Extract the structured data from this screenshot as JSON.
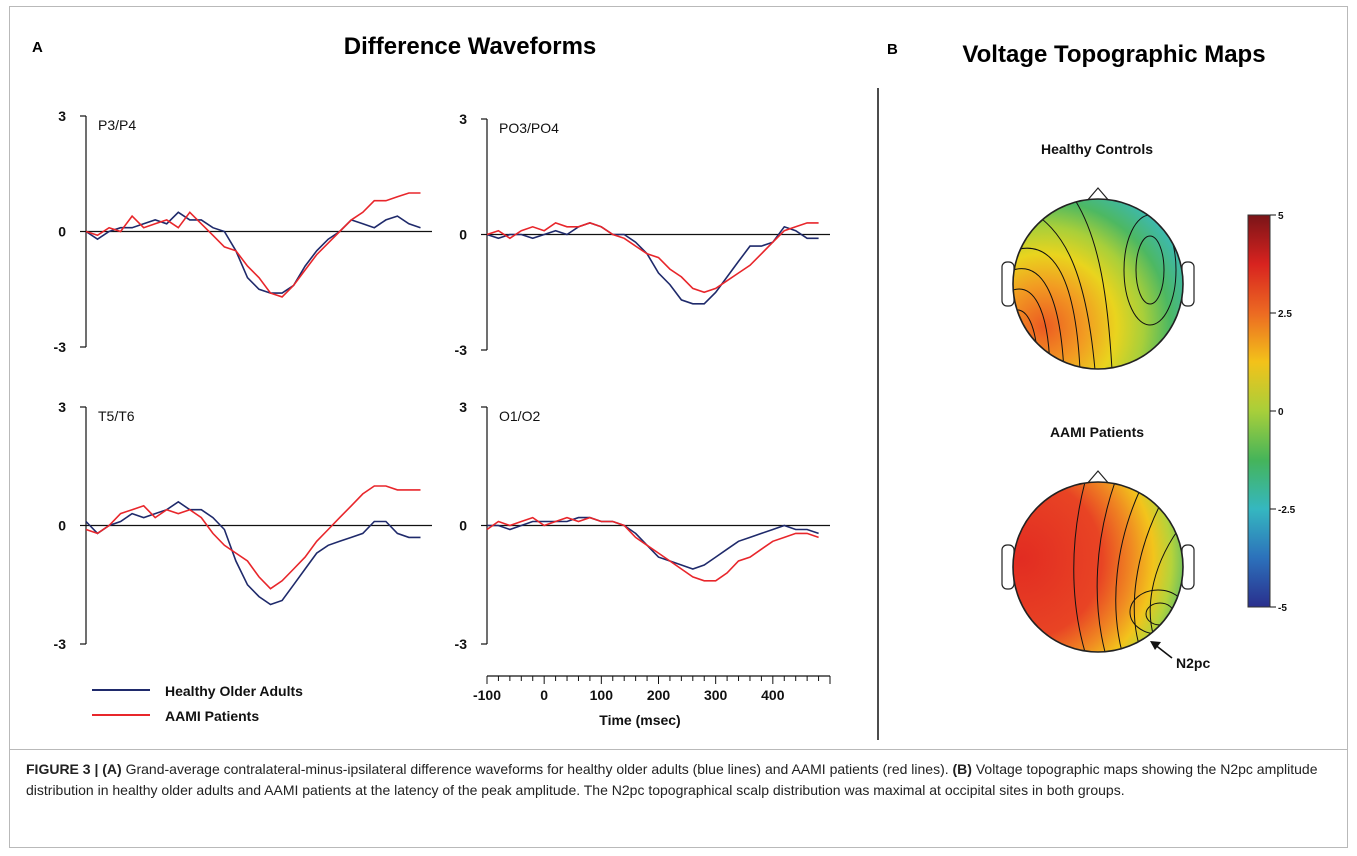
{
  "panel_a": {
    "letter": "A",
    "title": "Difference Waveforms",
    "legend": [
      {
        "label": "Healthy Older Adults",
        "color": "#1f2a6b"
      },
      {
        "label": "AAMI Patients",
        "color": "#e8262b"
      }
    ],
    "x_tick_labels": [
      "-100",
      "0",
      "100",
      "200",
      "300",
      "400"
    ],
    "x_axis_label": "Time  (msec)"
  },
  "panel_b": {
    "letter": "B",
    "title": "Voltage  Topographic Maps",
    "maps": [
      {
        "title": "Healthy Controls"
      },
      {
        "title": "AAMI Patients",
        "annotation": "N2pc"
      }
    ],
    "color_scale": {
      "tick_labels": [
        "5",
        "2.5",
        "0",
        "-2.5",
        "-5"
      ],
      "colors": [
        "#7a1418",
        "#d8231f",
        "#ec6a22",
        "#f3c21a",
        "#a8cf3a",
        "#45b45a",
        "#35b7c0",
        "#2c71bb",
        "#2a2f8d"
      ]
    }
  },
  "chart_data": [
    {
      "type": "line",
      "label": "P3/P4",
      "xlim": [
        -100,
        500
      ],
      "ylim": [
        -3,
        3
      ],
      "y_tick_labels": [
        "3",
        "0",
        "-3"
      ],
      "series": [
        {
          "name": "Healthy Older Adults",
          "color": "#1f2a6b",
          "x": [
            -100,
            -80,
            -60,
            -40,
            -20,
            0,
            20,
            40,
            60,
            80,
            100,
            120,
            140,
            160,
            180,
            200,
            220,
            240,
            260,
            280,
            300,
            320,
            340,
            360,
            380,
            400,
            420,
            440,
            460,
            480
          ],
          "y": [
            0.0,
            -0.2,
            0.0,
            0.1,
            0.1,
            0.2,
            0.3,
            0.2,
            0.5,
            0.3,
            0.3,
            0.1,
            0.0,
            -0.5,
            -1.2,
            -1.5,
            -1.6,
            -1.6,
            -1.4,
            -0.9,
            -0.5,
            -0.2,
            0.0,
            0.3,
            0.2,
            0.1,
            0.3,
            0.4,
            0.2,
            0.1
          ]
        },
        {
          "name": "AAMI Patients",
          "color": "#e8262b",
          "x": [
            -100,
            -80,
            -60,
            -40,
            -20,
            0,
            20,
            40,
            60,
            80,
            100,
            120,
            140,
            160,
            180,
            200,
            220,
            240,
            260,
            280,
            300,
            320,
            340,
            360,
            380,
            400,
            420,
            440,
            460,
            480
          ],
          "y": [
            0.0,
            -0.1,
            0.1,
            0.0,
            0.4,
            0.1,
            0.2,
            0.3,
            0.1,
            0.5,
            0.2,
            -0.1,
            -0.4,
            -0.5,
            -0.9,
            -1.2,
            -1.6,
            -1.7,
            -1.4,
            -1.0,
            -0.6,
            -0.3,
            0.0,
            0.3,
            0.5,
            0.8,
            0.8,
            0.9,
            1.0,
            1.0
          ]
        }
      ]
    },
    {
      "type": "line",
      "label": "PO3/PO4",
      "xlim": [
        -100,
        500
      ],
      "ylim": [
        -3,
        3
      ],
      "y_tick_labels": [
        "3",
        "0",
        "-3"
      ],
      "series": [
        {
          "name": "Healthy Older Adults",
          "color": "#1f2a6b",
          "x": [
            -100,
            -80,
            -60,
            -40,
            -20,
            0,
            20,
            40,
            60,
            80,
            100,
            120,
            140,
            160,
            180,
            200,
            220,
            240,
            260,
            280,
            300,
            320,
            340,
            360,
            380,
            400,
            420,
            440,
            460,
            480
          ],
          "y": [
            0.0,
            -0.1,
            0.0,
            0.0,
            -0.1,
            0.0,
            0.1,
            0.0,
            0.2,
            0.3,
            0.2,
            0.0,
            0.0,
            -0.2,
            -0.5,
            -1.0,
            -1.3,
            -1.7,
            -1.8,
            -1.8,
            -1.5,
            -1.1,
            -0.7,
            -0.3,
            -0.3,
            -0.2,
            0.2,
            0.1,
            -0.1,
            -0.1
          ]
        },
        {
          "name": "AAMI Patients",
          "color": "#e8262b",
          "x": [
            -100,
            -80,
            -60,
            -40,
            -20,
            0,
            20,
            40,
            60,
            80,
            100,
            120,
            140,
            160,
            180,
            200,
            220,
            240,
            260,
            280,
            300,
            320,
            340,
            360,
            380,
            400,
            420,
            440,
            460,
            480
          ],
          "y": [
            0.0,
            0.1,
            -0.1,
            0.1,
            0.2,
            0.1,
            0.3,
            0.2,
            0.2,
            0.3,
            0.2,
            0.0,
            -0.1,
            -0.3,
            -0.5,
            -0.6,
            -0.9,
            -1.1,
            -1.4,
            -1.5,
            -1.4,
            -1.2,
            -1.0,
            -0.8,
            -0.5,
            -0.2,
            0.1,
            0.2,
            0.3,
            0.3
          ]
        }
      ]
    },
    {
      "type": "line",
      "label": "T5/T6",
      "xlim": [
        -100,
        500
      ],
      "ylim": [
        -3,
        3
      ],
      "y_tick_labels": [
        "3",
        "0",
        "-3"
      ],
      "series": [
        {
          "name": "Healthy Older Adults",
          "color": "#1f2a6b",
          "x": [
            -100,
            -80,
            -60,
            -40,
            -20,
            0,
            20,
            40,
            60,
            80,
            100,
            120,
            140,
            160,
            180,
            200,
            220,
            240,
            260,
            280,
            300,
            320,
            340,
            360,
            380,
            400,
            420,
            440,
            460,
            480
          ],
          "y": [
            0.1,
            -0.2,
            0.0,
            0.1,
            0.3,
            0.2,
            0.3,
            0.4,
            0.6,
            0.4,
            0.4,
            0.2,
            -0.1,
            -0.9,
            -1.5,
            -1.8,
            -2.0,
            -1.9,
            -1.5,
            -1.1,
            -0.7,
            -0.5,
            -0.4,
            -0.3,
            -0.2,
            0.1,
            0.1,
            -0.2,
            -0.3,
            -0.3
          ]
        },
        {
          "name": "AAMI Patients",
          "color": "#e8262b",
          "x": [
            -100,
            -80,
            -60,
            -40,
            -20,
            0,
            20,
            40,
            60,
            80,
            100,
            120,
            140,
            160,
            180,
            200,
            220,
            240,
            260,
            280,
            300,
            320,
            340,
            360,
            380,
            400,
            420,
            440,
            460,
            480
          ],
          "y": [
            -0.1,
            -0.2,
            0.0,
            0.3,
            0.4,
            0.5,
            0.2,
            0.4,
            0.3,
            0.4,
            0.2,
            -0.2,
            -0.5,
            -0.7,
            -0.9,
            -1.3,
            -1.6,
            -1.4,
            -1.1,
            -0.8,
            -0.4,
            -0.1,
            0.2,
            0.5,
            0.8,
            1.0,
            1.0,
            0.9,
            0.9,
            0.9
          ]
        }
      ]
    },
    {
      "type": "line",
      "label": "O1/O2",
      "xlim": [
        -100,
        500
      ],
      "ylim": [
        -3,
        3
      ],
      "y_tick_labels": [
        "3",
        "0",
        "-3"
      ],
      "series": [
        {
          "name": "Healthy Older Adults",
          "color": "#1f2a6b",
          "x": [
            -100,
            -80,
            -60,
            -40,
            -20,
            0,
            20,
            40,
            60,
            80,
            100,
            120,
            140,
            160,
            180,
            200,
            220,
            240,
            260,
            280,
            300,
            320,
            340,
            360,
            380,
            400,
            420,
            440,
            460,
            480
          ],
          "y": [
            0.0,
            0.0,
            -0.1,
            0.0,
            0.1,
            0.1,
            0.1,
            0.1,
            0.2,
            0.2,
            0.1,
            0.1,
            0.0,
            -0.2,
            -0.5,
            -0.8,
            -0.9,
            -1.0,
            -1.1,
            -1.0,
            -0.8,
            -0.6,
            -0.4,
            -0.3,
            -0.2,
            -0.1,
            0.0,
            -0.1,
            -0.1,
            -0.2
          ]
        },
        {
          "name": "AAMI Patients",
          "color": "#e8262b",
          "x": [
            -100,
            -80,
            -60,
            -40,
            -20,
            0,
            20,
            40,
            60,
            80,
            100,
            120,
            140,
            160,
            180,
            200,
            220,
            240,
            260,
            280,
            300,
            320,
            340,
            360,
            380,
            400,
            420,
            440,
            460,
            480
          ],
          "y": [
            -0.1,
            0.1,
            0.0,
            0.1,
            0.2,
            0.0,
            0.1,
            0.2,
            0.1,
            0.2,
            0.1,
            0.1,
            0.0,
            -0.3,
            -0.5,
            -0.7,
            -0.9,
            -1.1,
            -1.3,
            -1.4,
            -1.4,
            -1.2,
            -0.9,
            -0.8,
            -0.6,
            -0.4,
            -0.3,
            -0.2,
            -0.2,
            -0.3
          ]
        }
      ]
    }
  ],
  "caption": {
    "label": "FIGURE 3 | ",
    "a_ref": "(A)",
    "part1": " Grand-average contralateral-minus-ipsilateral difference waveforms for healthy older adults (blue lines) and AAMI patients (red lines). ",
    "b_ref": "(B)",
    "part2": " Voltage topographic maps showing the N2pc amplitude distribution in healthy older adults and AAMI patients at the latency of the peak amplitude. The N2pc topographical scalp distribution was maximal at occipital sites in both groups."
  }
}
